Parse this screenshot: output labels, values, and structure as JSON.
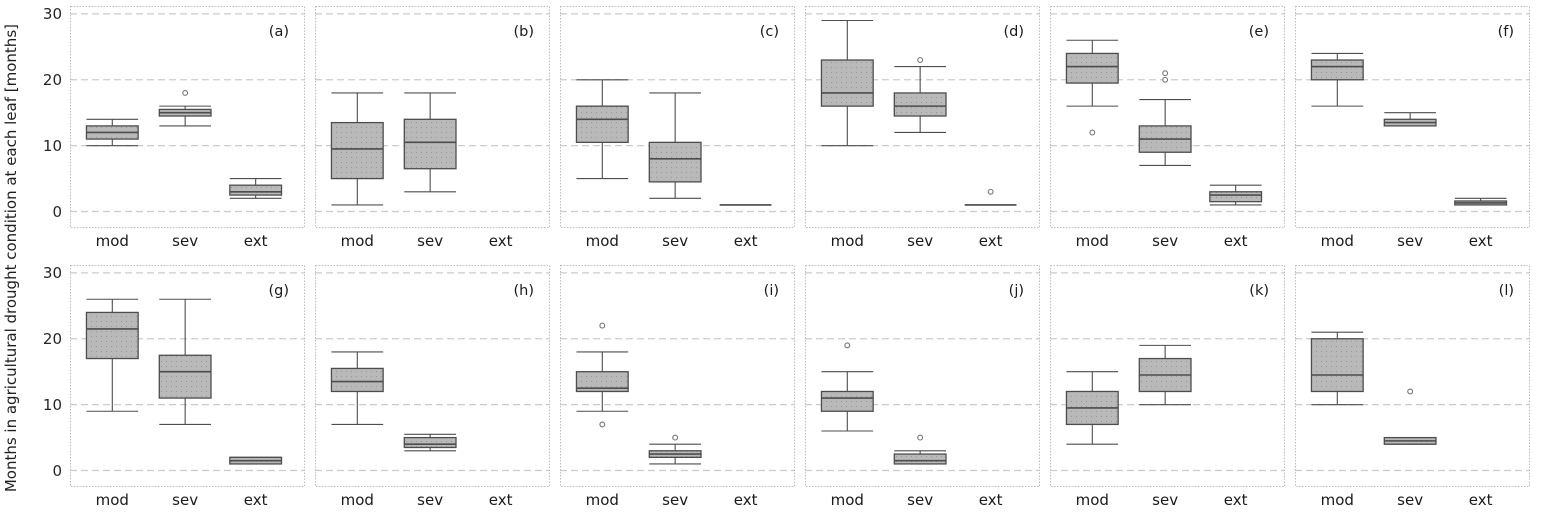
{
  "figure": {
    "ylabel": "Months in agricultural drought condition at each leaf [months]"
  },
  "chart_data": {
    "type": "boxplot-grid",
    "rows": 2,
    "cols": 6,
    "categories": [
      "mod",
      "sev",
      "ext"
    ],
    "yticks": [
      0,
      10,
      20,
      30
    ],
    "ylim": [
      -2.5,
      31.2
    ],
    "grid_lines": "horizontal dashed at yticks",
    "layout": {
      "category_centers": [
        0.18,
        0.49,
        0.79
      ],
      "box_width_frac": 0.22,
      "cap_width_frac": 0.11
    },
    "style": {
      "box_fill": "#b9b9b9",
      "stipple_dot": "#8f8f8f",
      "box_edge": "#4d4d4d",
      "median_color": "#4d4d4d",
      "whisker_color": "#4d4d4d",
      "flier_edge": "#757575",
      "gridline_color": "#cbcbcb",
      "frame_color": "#bdbdbd",
      "text_color": "#1a1a1a"
    },
    "subplots": [
      {
        "label": "(a)",
        "boxes": [
          {
            "category": "mod",
            "whislo": 10,
            "q1": 11,
            "med": 12,
            "q3": 13,
            "whishi": 14,
            "fliers": []
          },
          {
            "category": "sev",
            "whislo": 13,
            "q1": 14.5,
            "med": 15,
            "q3": 15.5,
            "whishi": 16,
            "fliers": [
              18
            ]
          },
          {
            "category": "ext",
            "whislo": 2,
            "q1": 2.5,
            "med": 3,
            "q3": 4,
            "whishi": 5,
            "fliers": []
          }
        ]
      },
      {
        "label": "(b)",
        "boxes": [
          {
            "category": "mod",
            "whislo": 1,
            "q1": 5,
            "med": 9.5,
            "q3": 13.5,
            "whishi": 18,
            "fliers": []
          },
          {
            "category": "sev",
            "whislo": 3,
            "q1": 6.5,
            "med": 10.5,
            "q3": 14,
            "whishi": 18,
            "fliers": []
          },
          {
            "category": "ext",
            "empty": true
          }
        ]
      },
      {
        "label": "(c)",
        "boxes": [
          {
            "category": "mod",
            "whislo": 5,
            "q1": 10.5,
            "med": 14,
            "q3": 16,
            "whishi": 20,
            "fliers": []
          },
          {
            "category": "sev",
            "whislo": 2,
            "q1": 4.5,
            "med": 8,
            "q3": 10.5,
            "whishi": 18,
            "fliers": []
          },
          {
            "category": "ext",
            "whislo": 1,
            "q1": 1,
            "med": 1,
            "q3": 1,
            "whishi": 1,
            "fliers": []
          }
        ]
      },
      {
        "label": "(d)",
        "boxes": [
          {
            "category": "mod",
            "whislo": 10,
            "q1": 16,
            "med": 18,
            "q3": 23,
            "whishi": 29,
            "fliers": []
          },
          {
            "category": "sev",
            "whislo": 12,
            "q1": 14.5,
            "med": 16,
            "q3": 18,
            "whishi": 22,
            "fliers": [
              23
            ]
          },
          {
            "category": "ext",
            "whislo": 1,
            "q1": 1,
            "med": 1,
            "q3": 1,
            "whishi": 1,
            "fliers": [
              3
            ]
          }
        ]
      },
      {
        "label": "(e)",
        "boxes": [
          {
            "category": "mod",
            "whislo": 16,
            "q1": 19.5,
            "med": 22,
            "q3": 24,
            "whishi": 26,
            "fliers": [
              12
            ]
          },
          {
            "category": "sev",
            "whislo": 7,
            "q1": 9,
            "med": 11,
            "q3": 13,
            "whishi": 17,
            "fliers": [
              20,
              21
            ]
          },
          {
            "category": "ext",
            "whislo": 1,
            "q1": 1.5,
            "med": 2.5,
            "q3": 3,
            "whishi": 4,
            "fliers": []
          }
        ]
      },
      {
        "label": "(f)",
        "boxes": [
          {
            "category": "mod",
            "whislo": 16,
            "q1": 20,
            "med": 22,
            "q3": 23,
            "whishi": 24,
            "fliers": []
          },
          {
            "category": "sev",
            "whislo": 13,
            "q1": 13,
            "med": 13.5,
            "q3": 14,
            "whishi": 15,
            "fliers": []
          },
          {
            "category": "ext",
            "whislo": 1,
            "q1": 1,
            "med": 1.3,
            "q3": 1.6,
            "whishi": 2,
            "fliers": []
          }
        ]
      },
      {
        "label": "(g)",
        "boxes": [
          {
            "category": "mod",
            "whislo": 9,
            "q1": 17,
            "med": 21.5,
            "q3": 24,
            "whishi": 26,
            "fliers": []
          },
          {
            "category": "sev",
            "whislo": 7,
            "q1": 11,
            "med": 15,
            "q3": 17.5,
            "whishi": 26,
            "fliers": []
          },
          {
            "category": "ext",
            "whislo": 1,
            "q1": 1,
            "med": 1.5,
            "q3": 2,
            "whishi": 2,
            "fliers": []
          }
        ]
      },
      {
        "label": "(h)",
        "boxes": [
          {
            "category": "mod",
            "whislo": 7,
            "q1": 12,
            "med": 13.5,
            "q3": 15.5,
            "whishi": 18,
            "fliers": []
          },
          {
            "category": "sev",
            "whislo": 3,
            "q1": 3.5,
            "med": 4,
            "q3": 5,
            "whishi": 5.5,
            "fliers": []
          },
          {
            "category": "ext",
            "empty": true
          }
        ]
      },
      {
        "label": "(i)",
        "boxes": [
          {
            "category": "mod",
            "whislo": 9,
            "q1": 12,
            "med": 12.5,
            "q3": 15,
            "whishi": 18,
            "fliers": [
              7,
              22
            ]
          },
          {
            "category": "sev",
            "whislo": 1,
            "q1": 2,
            "med": 2.5,
            "q3": 3,
            "whishi": 4,
            "fliers": [
              5
            ]
          },
          {
            "category": "ext",
            "empty": true
          }
        ]
      },
      {
        "label": "(j)",
        "boxes": [
          {
            "category": "mod",
            "whislo": 6,
            "q1": 9,
            "med": 11,
            "q3": 12,
            "whishi": 15,
            "fliers": [
              19
            ]
          },
          {
            "category": "sev",
            "whislo": 1,
            "q1": 1,
            "med": 1.5,
            "q3": 2.5,
            "whishi": 3,
            "fliers": [
              5
            ]
          },
          {
            "category": "ext",
            "empty": true
          }
        ]
      },
      {
        "label": "(k)",
        "boxes": [
          {
            "category": "mod",
            "whislo": 4,
            "q1": 7,
            "med": 9.5,
            "q3": 12,
            "whishi": 15,
            "fliers": []
          },
          {
            "category": "sev",
            "whislo": 10,
            "q1": 12,
            "med": 14.5,
            "q3": 17,
            "whishi": 19,
            "fliers": []
          },
          {
            "category": "ext",
            "empty": true
          }
        ]
      },
      {
        "label": "(l)",
        "boxes": [
          {
            "category": "mod",
            "whislo": 10,
            "q1": 12,
            "med": 14.5,
            "q3": 20,
            "whishi": 21,
            "fliers": []
          },
          {
            "category": "sev",
            "whislo": 4,
            "q1": 4,
            "med": 4.5,
            "q3": 5,
            "whishi": 5,
            "fliers": [
              12
            ]
          },
          {
            "category": "ext",
            "empty": true
          }
        ]
      }
    ]
  }
}
